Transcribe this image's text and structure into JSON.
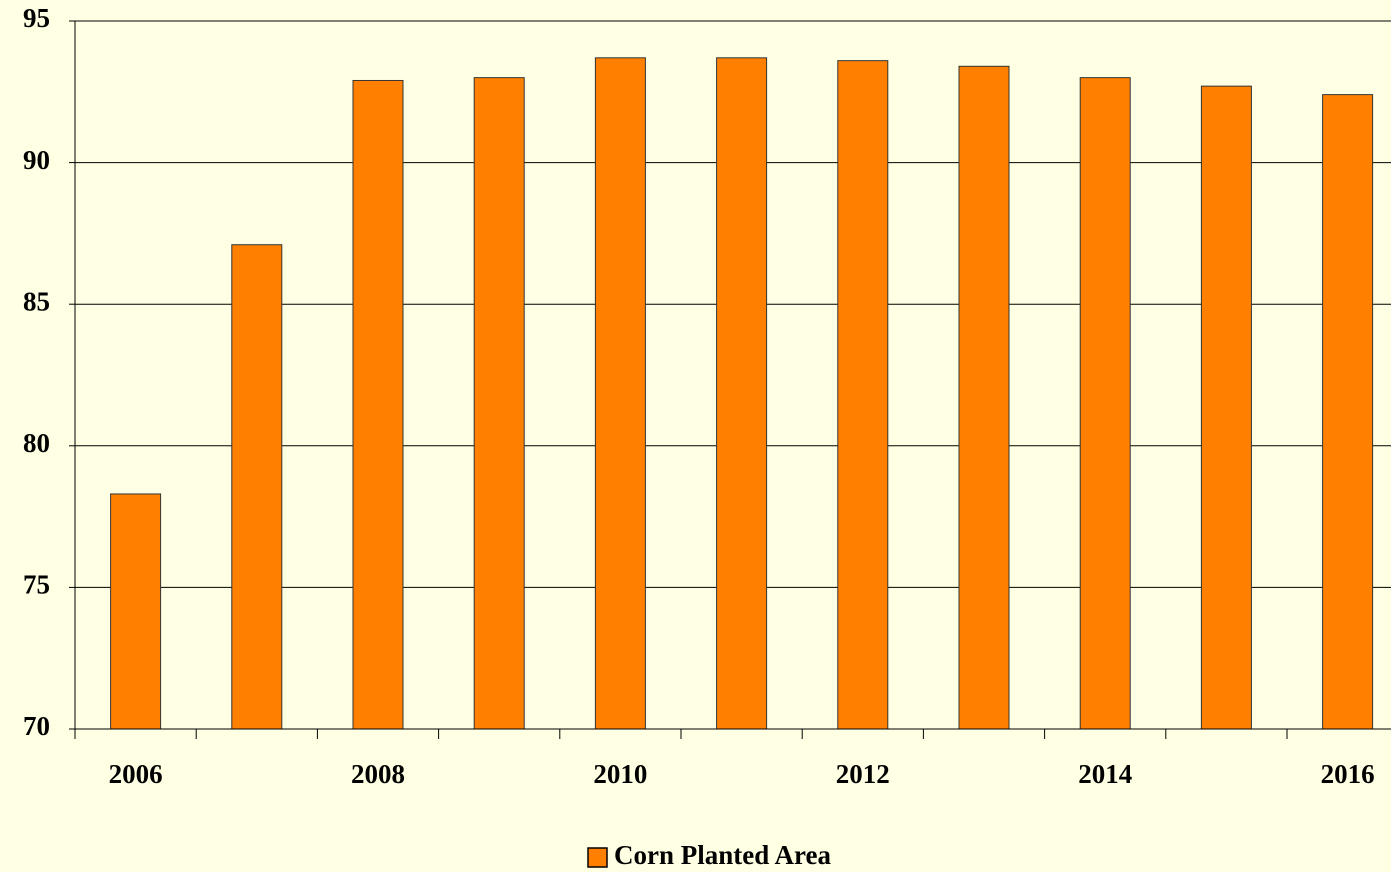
{
  "chart_data": {
    "type": "bar",
    "categories": [
      "2006",
      null,
      "2008",
      null,
      "2010",
      null,
      "2012",
      null,
      "2014",
      null,
      "2016"
    ],
    "series": [
      {
        "name": "Corn Planted Area",
        "color": "#ff8000",
        "values": [
          78.3,
          87.1,
          92.9,
          93.0,
          93.7,
          93.7,
          93.6,
          93.4,
          93.0,
          92.7,
          92.4
        ]
      }
    ],
    "ylim": [
      70,
      95
    ],
    "yticks": [
      70,
      75,
      80,
      85,
      90,
      95
    ],
    "grid": true,
    "legend": "bottom"
  }
}
